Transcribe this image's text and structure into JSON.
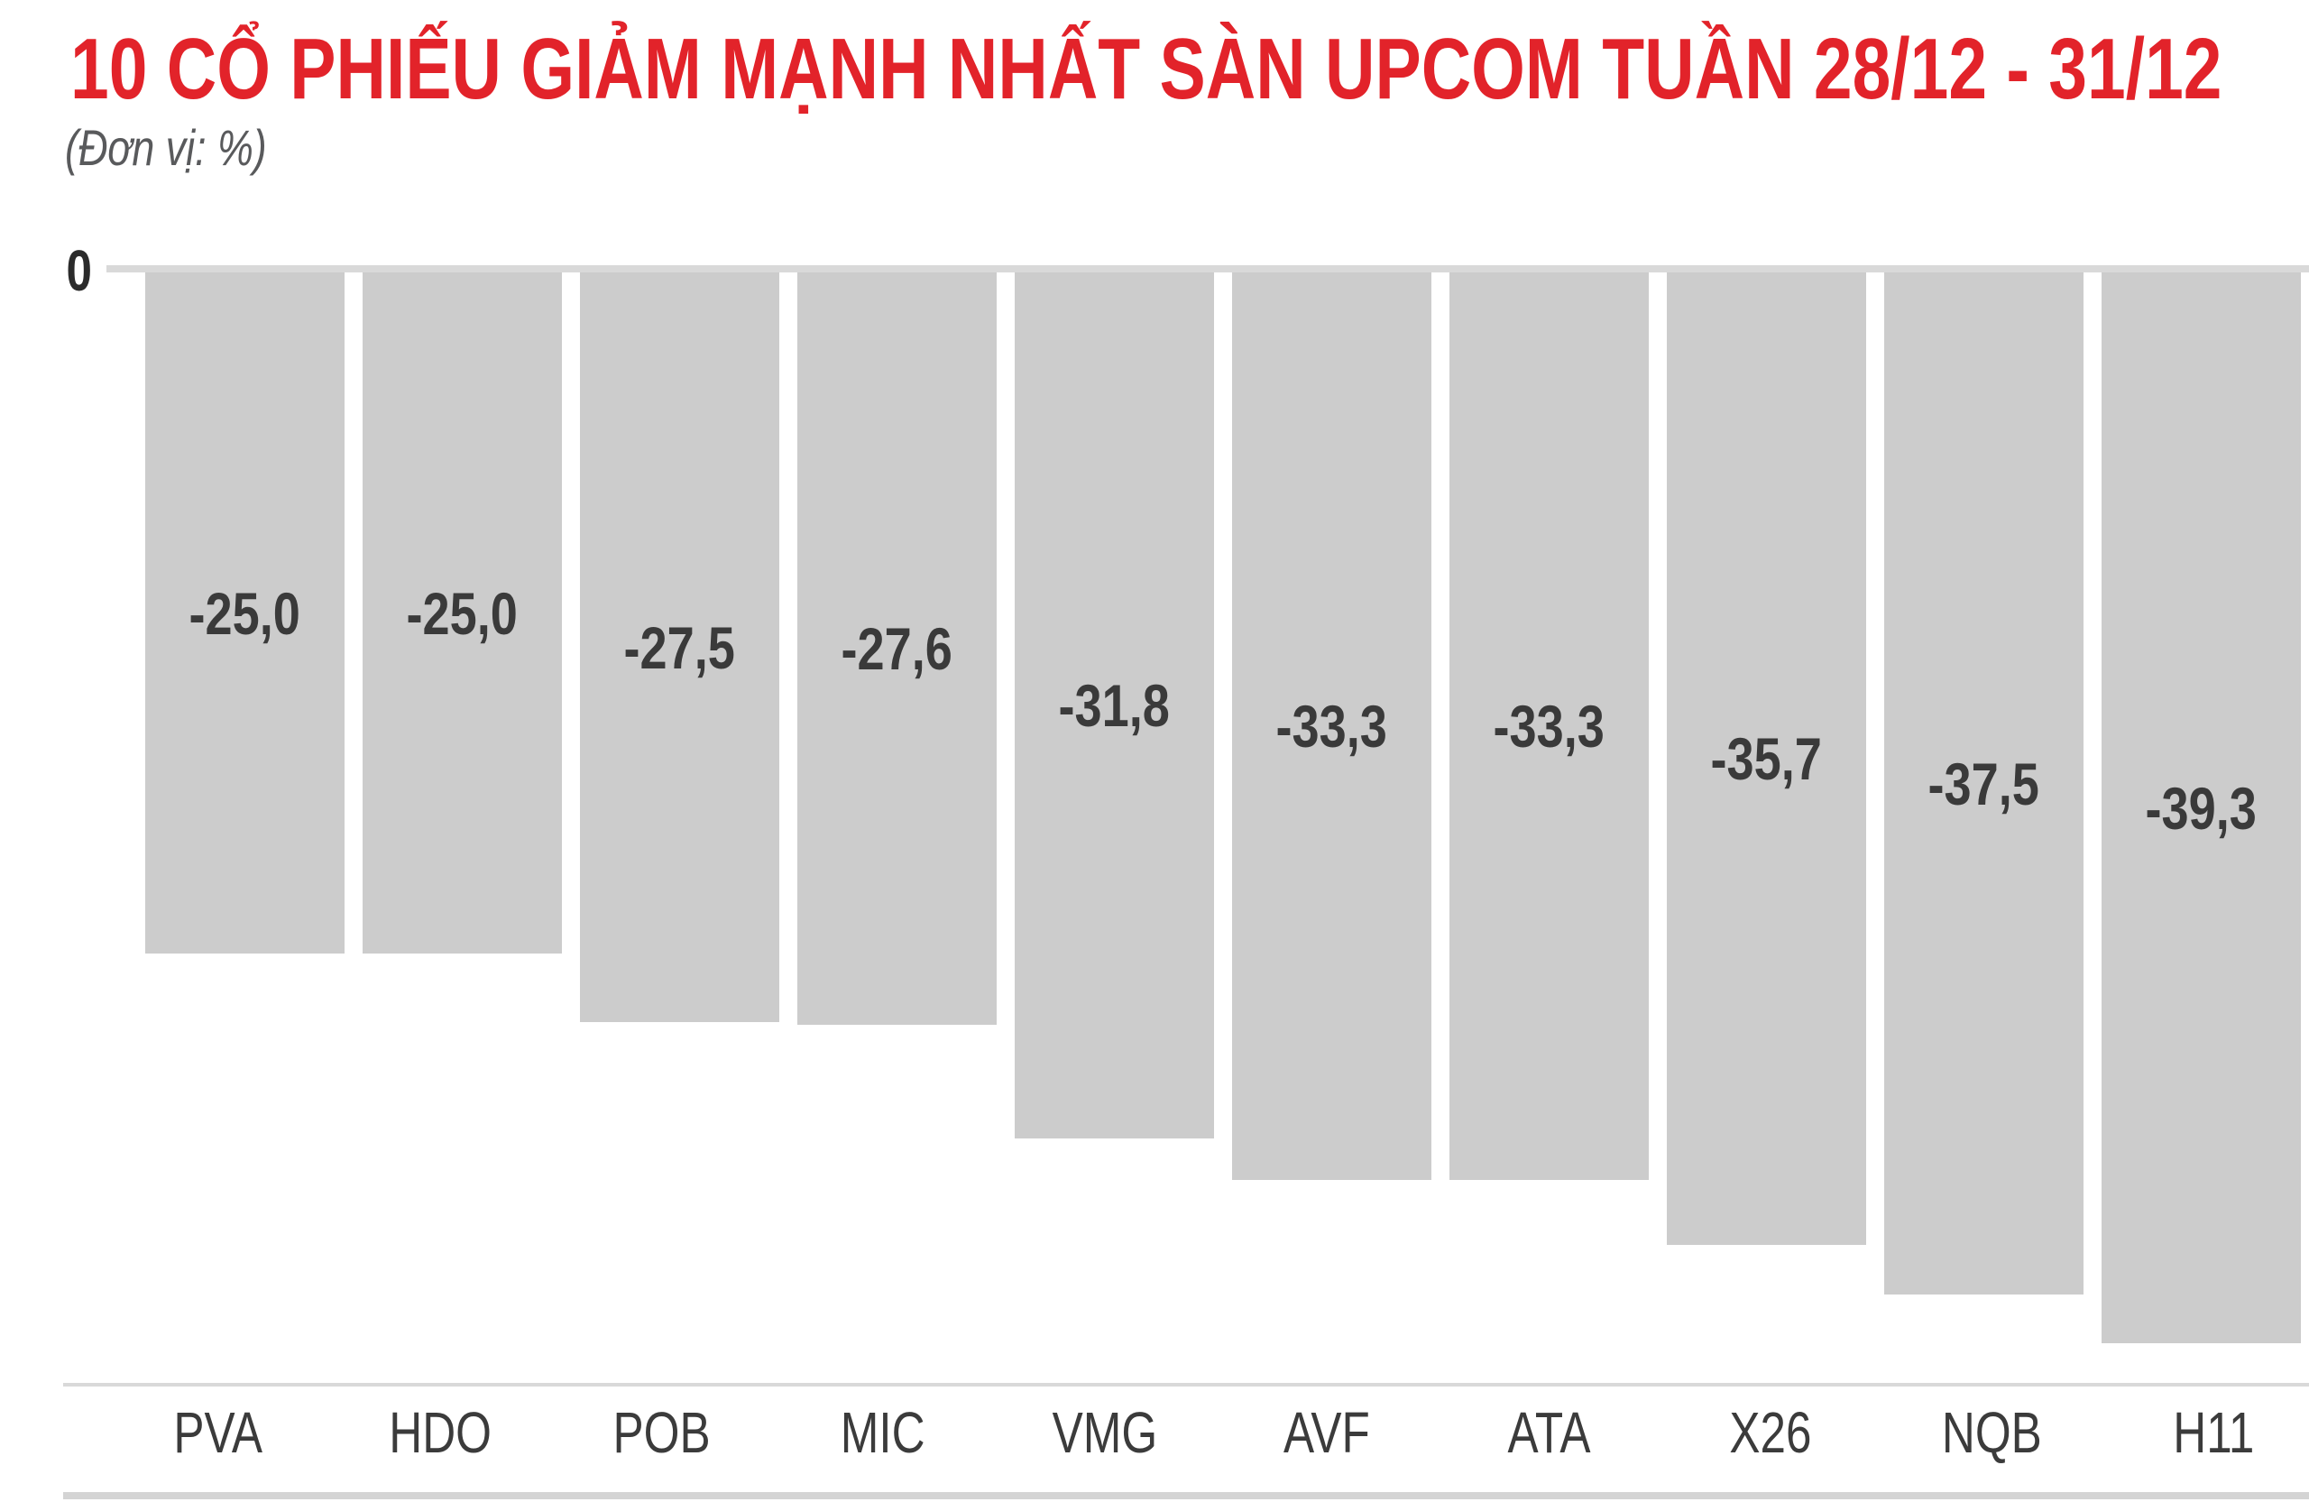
{
  "title": "10 CỔ PHIẾU GIẢM MẠNH NHẤT SÀN UPCOM TUẦN 28/12 - 31/12",
  "unit_label": "(Đơn vị: %)",
  "y_axis": {
    "zero_label": "0"
  },
  "colors": {
    "title_red": "#e2232a",
    "subtitle_gray": "#595a5c",
    "bar_gray": "#cccccc",
    "value_text": "#3a3a3a",
    "tick_text": "#3b3b3b",
    "axis_text": "#2b2b2b",
    "line_gray": "#d9d9d9",
    "line_gray_2": "#d4d4d4"
  },
  "chart_data": {
    "type": "bar",
    "orientation": "vertical",
    "title": "10 CỔ PHIẾU GIẢM MẠNH NHẤT SÀN UPCOM TUẦN 28/12 - 31/12",
    "unit": "%",
    "categories": [
      "PVA",
      "HDO",
      "POB",
      "MIC",
      "VMG",
      "AVF",
      "ATA",
      "X26",
      "NQB",
      "H11"
    ],
    "values": [
      -25.0,
      -25.0,
      -27.5,
      -27.6,
      -31.8,
      -33.3,
      -33.3,
      -35.7,
      -37.5,
      -39.3
    ],
    "value_labels": [
      "-25,0",
      "-25,0",
      "-27,5",
      "-27,6",
      "-31,8",
      "-33,3",
      "-33,3",
      "-35,7",
      "-37,5",
      "-39,3"
    ],
    "ylim": [
      -40,
      0
    ],
    "y_axis_zero_label": "0",
    "grid": false,
    "legend": false,
    "value_label_position": "center-of-bar",
    "bar_color": "#cccccc"
  }
}
